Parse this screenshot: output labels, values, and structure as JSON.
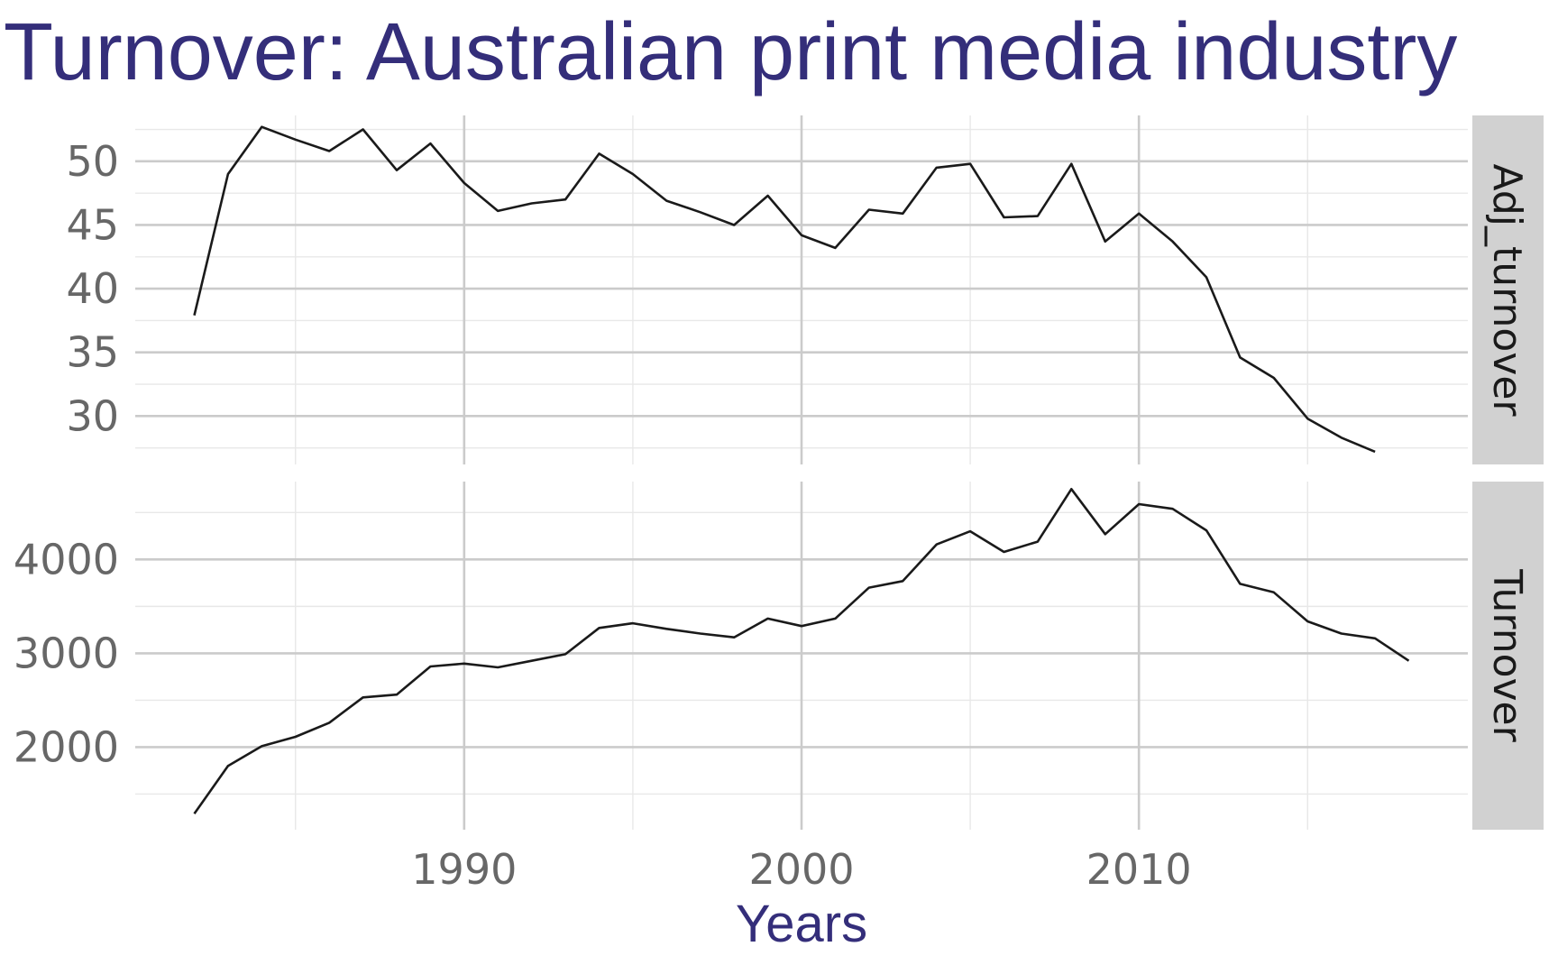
{
  "chart_data": {
    "type": "line",
    "title": "Turnover: Australian print media industry",
    "xlabel": "Years",
    "ylabel": "",
    "x_ticks": [
      1990,
      2000,
      2010
    ],
    "xlim": [
      1980.25,
      2019.75
    ],
    "grid": true,
    "facets": [
      {
        "name": "Adj_turnover",
        "ylim": [
          26.2,
          53.6
        ],
        "y_ticks": [
          30,
          35,
          40,
          45,
          50
        ],
        "x": [
          1982,
          1983,
          1984,
          1985,
          1986,
          1987,
          1988,
          1989,
          1990,
          1991,
          1992,
          1993,
          1994,
          1995,
          1996,
          1997,
          1998,
          1999,
          2000,
          2001,
          2002,
          2003,
          2004,
          2005,
          2006,
          2007,
          2008,
          2009,
          2010,
          2011,
          2012,
          2013,
          2014,
          2015,
          2016,
          2017
        ],
        "values": [
          37.9,
          49.0,
          52.7,
          51.7,
          50.8,
          52.5,
          49.3,
          51.4,
          48.3,
          46.1,
          46.7,
          47.0,
          50.6,
          49.0,
          46.9,
          46.0,
          45.0,
          47.3,
          44.2,
          43.2,
          46.2,
          45.9,
          49.5,
          49.8,
          45.6,
          45.7,
          49.8,
          43.7,
          45.9,
          43.7,
          40.9,
          34.6,
          33.0,
          29.8,
          28.3,
          27.2
        ]
      },
      {
        "name": "Turnover",
        "ylim": [
          1120,
          4830
        ],
        "y_ticks": [
          2000,
          3000,
          4000
        ],
        "x": [
          1982,
          1983,
          1984,
          1985,
          1986,
          1987,
          1988,
          1989,
          1990,
          1991,
          1992,
          1993,
          1994,
          1995,
          1996,
          1997,
          1998,
          1999,
          2000,
          2001,
          2002,
          2003,
          2004,
          2005,
          2006,
          2007,
          2008,
          2009,
          2010,
          2011,
          2012,
          2013,
          2014,
          2015,
          2016,
          2017,
          2018
        ],
        "values": [
          1290,
          1800,
          2010,
          2110,
          2260,
          2530,
          2560,
          2860,
          2890,
          2850,
          2920,
          2990,
          3270,
          3320,
          3260,
          3210,
          3170,
          3370,
          3290,
          3370,
          3700,
          3770,
          4160,
          4300,
          4080,
          4190,
          4750,
          4270,
          4590,
          4540,
          4310,
          3740,
          3650,
          3340,
          3210,
          3160,
          2920
        ]
      }
    ]
  }
}
